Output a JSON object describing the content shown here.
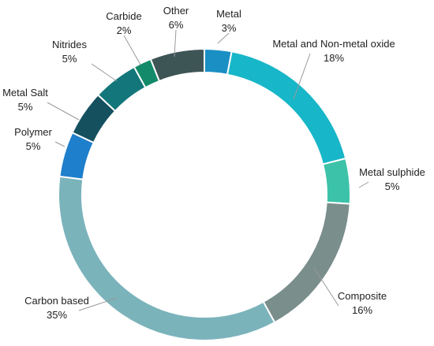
{
  "chart_data": {
    "type": "pie",
    "donut": true,
    "title": "",
    "slices": [
      {
        "label": "Metal",
        "value": 3,
        "value_label": "3%",
        "color": "#1a8fc4"
      },
      {
        "label": "Metal and Non-metal oxide",
        "value": 18,
        "value_label": "18%",
        "color": "#17b6c8"
      },
      {
        "label": "Metal sulphide",
        "value": 5,
        "value_label": "5%",
        "color": "#3cc2a8"
      },
      {
        "label": "Composite",
        "value": 16,
        "value_label": "16%",
        "color": "#7a8e8c"
      },
      {
        "label": "Carbon based",
        "value": 35,
        "value_label": "35%",
        "color": "#7bb3bb"
      },
      {
        "label": "Polymer",
        "value": 5,
        "value_label": "5%",
        "color": "#1e7fcc"
      },
      {
        "label": "Metal Salt",
        "value": 5,
        "value_label": "5%",
        "color": "#15505f"
      },
      {
        "label": "Nitrides",
        "value": 5,
        "value_label": "5%",
        "color": "#13767a"
      },
      {
        "label": "Carbide",
        "value": 2,
        "value_label": "2%",
        "color": "#138a6a"
      },
      {
        "label": "Other",
        "value": 6,
        "value_label": "6%",
        "color": "#3e5556"
      }
    ],
    "legend": "none",
    "labels": "outside with leader lines"
  }
}
